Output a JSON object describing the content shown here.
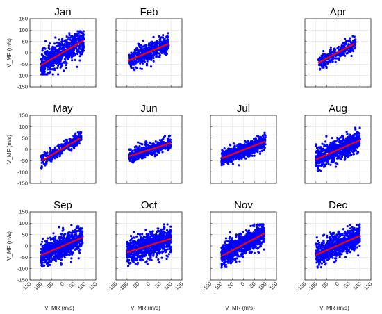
{
  "figure": {
    "panel_count": 11,
    "layout": "3 rows x 4 columns (row 1 col 3 empty)"
  },
  "chart_data": [
    {
      "type": "scatter",
      "title": "Jan",
      "row": 1,
      "col": 1,
      "xlim": [
        -150,
        150
      ],
      "ylim": [
        -150,
        150
      ],
      "xticks": [
        -150,
        -100,
        -50,
        0,
        50,
        100,
        150
      ],
      "yticks": [
        -150,
        -100,
        -50,
        0,
        50,
        100,
        150
      ],
      "grid": true,
      "xlabel": "",
      "ylabel": "V_MF (m/s)",
      "show_xticklabels": false,
      "show_yticklabels": true,
      "point_color": "#0000ff",
      "fit_color": "#ff0000",
      "cloud": {
        "x_range": [
          -100,
          95
        ],
        "center": [
          0,
          0
        ],
        "spread": 38,
        "count": 700
      },
      "fit": {
        "x": [
          -100,
          95
        ],
        "y": [
          -55,
          55
        ]
      }
    },
    {
      "type": "scatter",
      "title": "Feb",
      "row": 1,
      "col": 2,
      "xlim": [
        -150,
        150
      ],
      "ylim": [
        -150,
        150
      ],
      "xticks": [
        -150,
        -100,
        -50,
        0,
        50,
        100,
        150
      ],
      "yticks": [
        -150,
        -100,
        -50,
        0,
        50,
        100,
        150
      ],
      "grid": true,
      "xlabel": "",
      "ylabel": "",
      "show_xticklabels": false,
      "show_yticklabels": false,
      "point_color": "#0000ff",
      "fit_color": "#ff0000",
      "cloud": {
        "x_range": [
          -90,
          90
        ],
        "center": [
          0,
          10
        ],
        "spread": 30,
        "count": 500
      },
      "fit": {
        "x": [
          -95,
          90
        ],
        "y": [
          -35,
          40
        ]
      }
    },
    {
      "type": "scatter",
      "title": "Apr",
      "row": 1,
      "col": 4,
      "xlim": [
        -150,
        150
      ],
      "ylim": [
        -150,
        150
      ],
      "xticks": [
        -150,
        -100,
        -50,
        0,
        50,
        100,
        150
      ],
      "yticks": [
        -150,
        -100,
        -50,
        0,
        50,
        100,
        150
      ],
      "grid": true,
      "xlabel": "",
      "ylabel": "",
      "show_xticklabels": false,
      "show_yticklabels": false,
      "point_color": "#0000ff",
      "fit_color": "#ff0000",
      "cloud": {
        "x_range": [
          -90,
          80
        ],
        "center": [
          0,
          0
        ],
        "spread": 22,
        "count": 300
      },
      "fit": {
        "x": [
          -90,
          75
        ],
        "y": [
          -45,
          40
        ]
      }
    },
    {
      "type": "scatter",
      "title": "May",
      "row": 2,
      "col": 1,
      "xlim": [
        -150,
        150
      ],
      "ylim": [
        -150,
        150
      ],
      "xticks": [
        -150,
        -100,
        -50,
        0,
        50,
        100,
        150
      ],
      "yticks": [
        -150,
        -100,
        -50,
        0,
        50,
        100,
        150
      ],
      "grid": true,
      "xlabel": "",
      "ylabel": "V_MF (m/s)",
      "show_xticklabels": false,
      "show_yticklabels": true,
      "point_color": "#0000ff",
      "fit_color": "#ff0000",
      "cloud": {
        "x_range": [
          -100,
          85
        ],
        "center": [
          0,
          5
        ],
        "spread": 18,
        "count": 320
      },
      "fit": {
        "x": [
          -95,
          80
        ],
        "y": [
          -50,
          50
        ]
      }
    },
    {
      "type": "scatter",
      "title": "Jun",
      "row": 2,
      "col": 2,
      "xlim": [
        -150,
        150
      ],
      "ylim": [
        -150,
        150
      ],
      "xticks": [
        -150,
        -100,
        -50,
        0,
        50,
        100,
        150
      ],
      "yticks": [
        -150,
        -100,
        -50,
        0,
        50,
        100,
        150
      ],
      "grid": true,
      "xlabel": "",
      "ylabel": "",
      "show_xticklabels": false,
      "show_yticklabels": false,
      "point_color": "#0000ff",
      "fit_color": "#ff0000",
      "cloud": {
        "x_range": [
          -90,
          100
        ],
        "center": [
          5,
          -3
        ],
        "spread": 20,
        "count": 450
      },
      "fit": {
        "x": [
          -90,
          100
        ],
        "y": [
          -30,
          28
        ]
      }
    },
    {
      "type": "scatter",
      "title": "Jul",
      "row": 2,
      "col": 3,
      "xlim": [
        -150,
        150
      ],
      "ylim": [
        -150,
        150
      ],
      "xticks": [
        -150,
        -100,
        -50,
        0,
        50,
        100,
        150
      ],
      "yticks": [
        -150,
        -100,
        -50,
        0,
        50,
        100,
        150
      ],
      "grid": true,
      "xlabel": "",
      "ylabel": "",
      "show_xticklabels": false,
      "show_yticklabels": false,
      "point_color": "#0000ff",
      "fit_color": "#ff0000",
      "cloud": {
        "x_range": [
          -100,
          100
        ],
        "center": [
          0,
          -5
        ],
        "spread": 22,
        "count": 750
      },
      "fit": {
        "x": [
          -100,
          100
        ],
        "y": [
          -40,
          35
        ]
      }
    },
    {
      "type": "scatter",
      "title": "Aug",
      "row": 2,
      "col": 4,
      "xlim": [
        -150,
        150
      ],
      "ylim": [
        -150,
        150
      ],
      "xticks": [
        -150,
        -100,
        -50,
        0,
        50,
        100,
        150
      ],
      "yticks": [
        -150,
        -100,
        -50,
        0,
        50,
        100,
        150
      ],
      "grid": true,
      "xlabel": "",
      "ylabel": "",
      "show_xticklabels": false,
      "show_yticklabels": false,
      "point_color": "#0000ff",
      "fit_color": "#ff0000",
      "cloud": {
        "x_range": [
          -100,
          100
        ],
        "center": [
          0,
          -5
        ],
        "spread": 30,
        "count": 800
      },
      "fit": {
        "x": [
          -100,
          100
        ],
        "y": [
          -45,
          40
        ]
      }
    },
    {
      "type": "scatter",
      "title": "Sep",
      "row": 3,
      "col": 1,
      "xlim": [
        -150,
        150
      ],
      "ylim": [
        -150,
        150
      ],
      "xticks": [
        -150,
        -100,
        -50,
        0,
        50,
        100,
        150
      ],
      "yticks": [
        -150,
        -100,
        -50,
        0,
        50,
        100,
        150
      ],
      "grid": true,
      "xlabel": "V_MR (m/s)",
      "ylabel": "V_MF (m/s)",
      "show_xticklabels": true,
      "show_yticklabels": true,
      "point_color": "#0000ff",
      "fit_color": "#ff0000",
      "cloud": {
        "x_range": [
          -100,
          90
        ],
        "center": [
          0,
          0
        ],
        "spread": 35,
        "count": 850
      },
      "fit": {
        "x": [
          -100,
          90
        ],
        "y": [
          -42,
          38
        ]
      }
    },
    {
      "type": "scatter",
      "title": "Oct",
      "row": 3,
      "col": 2,
      "xlim": [
        -150,
        150
      ],
      "ylim": [
        -150,
        150
      ],
      "xticks": [
        -150,
        -100,
        -50,
        0,
        50,
        100,
        150
      ],
      "yticks": [
        -150,
        -100,
        -50,
        0,
        50,
        100,
        150
      ],
      "grid": true,
      "xlabel": "V_MR (m/s)",
      "ylabel": "",
      "show_xticklabels": true,
      "show_yticklabels": false,
      "point_color": "#0000ff",
      "fit_color": "#ff0000",
      "cloud": {
        "x_range": [
          -100,
          100
        ],
        "center": [
          0,
          0
        ],
        "spread": 38,
        "count": 850
      },
      "fit": {
        "x": [
          -100,
          100
        ],
        "y": [
          -28,
          32
        ]
      }
    },
    {
      "type": "scatter",
      "title": "Nov",
      "row": 3,
      "col": 3,
      "xlim": [
        -150,
        150
      ],
      "ylim": [
        -150,
        150
      ],
      "xticks": [
        -150,
        -100,
        -50,
        0,
        50,
        100,
        150
      ],
      "yticks": [
        -150,
        -100,
        -50,
        0,
        50,
        100,
        150
      ],
      "grid": true,
      "xlabel": "V_MR (m/s)",
      "ylabel": "",
      "show_xticklabels": true,
      "show_yticklabels": false,
      "point_color": "#0000ff",
      "fit_color": "#ff0000",
      "cloud": {
        "x_range": [
          -100,
          95
        ],
        "center": [
          0,
          0
        ],
        "spread": 33,
        "count": 850
      },
      "fit": {
        "x": [
          -100,
          95
        ],
        "y": [
          -45,
          55
        ]
      }
    },
    {
      "type": "scatter",
      "title": "Dec",
      "row": 3,
      "col": 4,
      "xlim": [
        -150,
        150
      ],
      "ylim": [
        -150,
        150
      ],
      "xticks": [
        -150,
        -100,
        -50,
        0,
        50,
        100,
        150
      ],
      "yticks": [
        -150,
        -100,
        -50,
        0,
        50,
        100,
        150
      ],
      "grid": true,
      "xlabel": "V_MR (m/s)",
      "ylabel": "",
      "show_xticklabels": true,
      "show_yticklabels": false,
      "point_color": "#0000ff",
      "fit_color": "#ff0000",
      "cloud": {
        "x_range": [
          -100,
          100
        ],
        "center": [
          0,
          0
        ],
        "spread": 35,
        "count": 850
      },
      "fit": {
        "x": [
          -100,
          100
        ],
        "y": [
          -40,
          45
        ]
      }
    }
  ]
}
